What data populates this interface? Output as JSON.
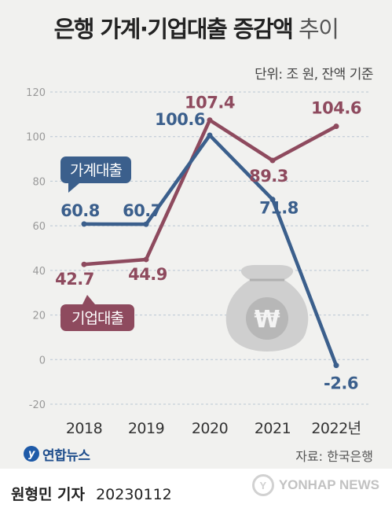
{
  "title": {
    "main": "은행 가계·기업대출 증감액",
    "sub": "추이"
  },
  "unit_note": "단위: 조 원, 잔액 기준",
  "source": "자료: 한국은행",
  "logo_text": "연합뉴스",
  "reporter": {
    "name": "원형민 기자",
    "date": "20230112"
  },
  "watermark": "YONHAP NEWS",
  "colors": {
    "household": "#3b5f8c",
    "corporate": "#8e4a5e",
    "background": "#f1f1ef",
    "grid": "#b9c6d3",
    "money_bag": "#c9c9c9"
  },
  "icons": [
    "money-bag-icon",
    "won-sign-icon",
    "yonhap-logo-icon"
  ],
  "chart_data": {
    "type": "line",
    "categories": [
      "2018",
      "2019",
      "2020",
      "2021",
      "2022년"
    ],
    "ylim": [
      -20,
      120
    ],
    "yticks": [
      -20,
      0,
      20,
      40,
      60,
      80,
      100,
      120
    ],
    "grid": true,
    "series": [
      {
        "name": "가계대출",
        "color": "#3b5f8c",
        "values": [
          60.8,
          60.7,
          100.6,
          71.8,
          -2.6
        ],
        "labels": [
          "60.8",
          "60.7",
          "100.6",
          "71.8",
          "-2.6"
        ]
      },
      {
        "name": "기업대출",
        "color": "#8e4a5e",
        "values": [
          42.7,
          44.9,
          107.4,
          89.3,
          104.6
        ],
        "labels": [
          "42.7",
          "44.9",
          "107.4",
          "89.3",
          "104.6"
        ]
      }
    ]
  }
}
